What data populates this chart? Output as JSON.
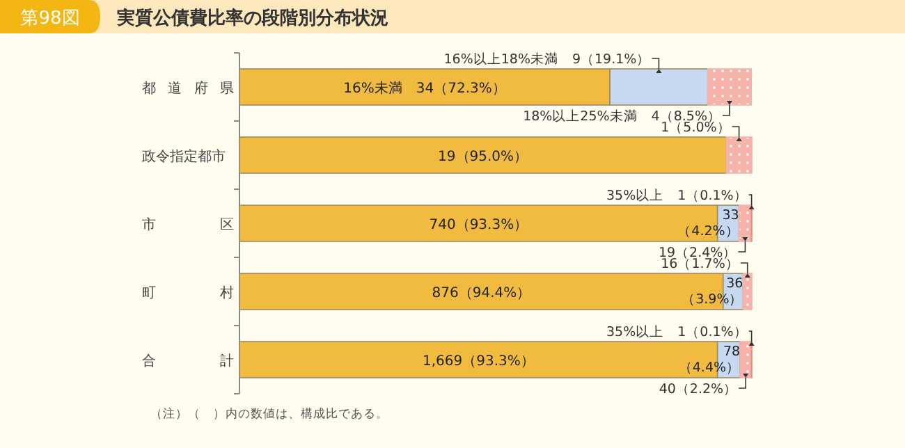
{
  "chart_data": {
    "type": "bar",
    "orientation": "horizontal",
    "stacked": true,
    "title": "実質公債費比率の段階別分布状況",
    "categories": [
      "都道府県",
      "政令指定都市",
      "市区",
      "町村",
      "合計"
    ],
    "series": [
      {
        "color": "#f0bb3e",
        "values": [
          72.3,
          95.0,
          93.3,
          94.4,
          93.3
        ],
        "value_labels": [
          "16%未満　34（72.3%）",
          "19（95.0%）",
          "740（93.3%）",
          "876（94.4%）",
          "1,669（93.3%）"
        ]
      },
      {
        "color": "#c6d9f0",
        "values": [
          19.1,
          null,
          4.2,
          3.9,
          4.4
        ],
        "value_labels": [
          "16%以上18%未満　9（19.1%）",
          null,
          "33（4.2%）",
          "36（3.9%）",
          "78（4.4%）"
        ]
      },
      {
        "color": "#f6b3aa",
        "values": [
          8.5,
          5.0,
          2.4,
          1.7,
          2.2
        ],
        "value_labels": [
          "18%以上25%未満　4（8.5%）",
          "1（5.0%）",
          "19（2.4%）",
          "16（1.7%）",
          "40（2.2%）"
        ]
      },
      {
        "color": "#e98f86",
        "values": [
          null,
          null,
          0.1,
          null,
          0.1
        ],
        "value_labels": [
          null,
          null,
          "35%以上　1（0.1%）",
          null,
          "35%以上　1（0.1%）"
        ]
      }
    ],
    "annotations": [
      "第98図",
      "（注）（　）内の数値は、構成比である。"
    ]
  }
}
